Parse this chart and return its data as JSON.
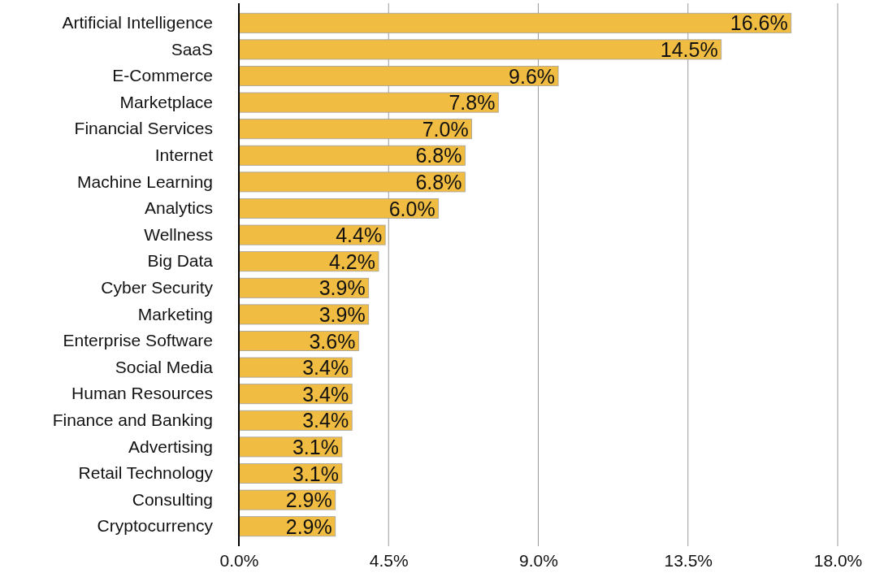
{
  "chart_data": {
    "type": "bar",
    "orientation": "horizontal",
    "categories": [
      "Artificial Intelligence",
      "SaaS",
      "E-Commerce",
      "Marketplace",
      "Financial Services",
      "Internet",
      "Machine Learning",
      "Analytics",
      "Wellness",
      "Big Data",
      "Cyber Security",
      "Marketing",
      "Enterprise Software",
      "Social Media",
      "Human Resources",
      "Finance and Banking",
      "Advertising",
      "Retail Technology",
      "Consulting",
      "Cryptocurrency"
    ],
    "values": [
      16.6,
      14.5,
      9.6,
      7.8,
      7.0,
      6.8,
      6.8,
      6.0,
      4.4,
      4.2,
      3.9,
      3.9,
      3.6,
      3.4,
      3.4,
      3.4,
      3.1,
      3.1,
      2.9,
      2.9
    ],
    "value_labels": [
      "16.6%",
      "14.5%",
      "9.6%",
      "7.8%",
      "7.0%",
      "6.8%",
      "6.8%",
      "6.0%",
      "4.4%",
      "4.2%",
      "3.9%",
      "3.9%",
      "3.6%",
      "3.4%",
      "3.4%",
      "3.4%",
      "3.1%",
      "3.1%",
      "2.9%",
      "2.9%"
    ],
    "color": "#f0bc42",
    "xlim": [
      0,
      18
    ],
    "xticks": [
      {
        "value": 0,
        "label": "0.0%"
      },
      {
        "value": 4.5,
        "label": "4.5%"
      },
      {
        "value": 9,
        "label": "9.0%"
      },
      {
        "value": 13.5,
        "label": "13.5%"
      },
      {
        "value": 18,
        "label": "18.0%"
      }
    ],
    "grid": "x"
  }
}
